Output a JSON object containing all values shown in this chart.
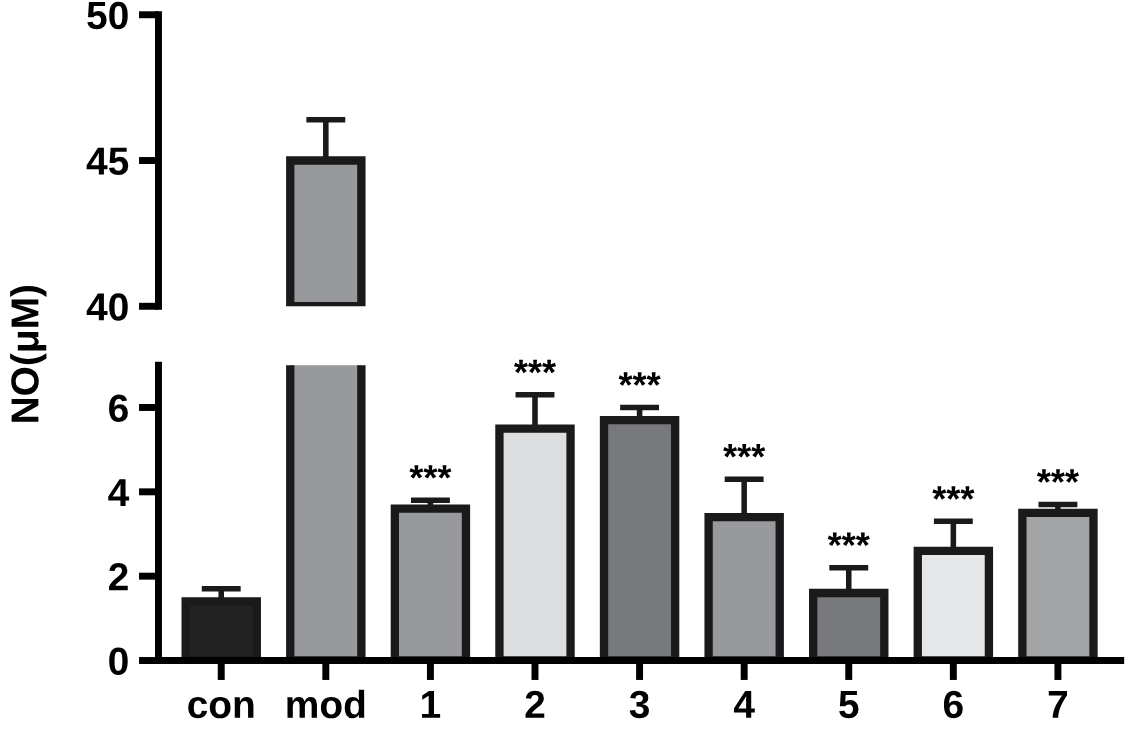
{
  "chart_data": [
    {
      "type": "bar",
      "categories": [
        null,
        null,
        null,
        null,
        null,
        null,
        null,
        null,
        null
      ],
      "values": [
        null,
        45,
        null,
        null,
        null,
        null,
        null,
        null,
        null
      ],
      "colors": [
        "#222222",
        "#97999c",
        "#97999c",
        "#dcdddf",
        "#78797c",
        "#97999c",
        "#78797c",
        "#e6e7e8",
        "#a3a4a6"
      ],
      "errors": [
        null,
        [
          45,
          46.4
        ],
        null,
        null,
        null,
        null,
        null,
        null,
        null
      ],
      "ylim": [
        40,
        50
      ],
      "yticks": [
        40,
        45,
        50
      ],
      "tick_labels": "y"
    },
    {
      "type": "bar",
      "categories": [
        "con",
        "mod",
        "1",
        "2",
        "3",
        "4",
        "5",
        "6",
        "7"
      ],
      "values": [
        1.4,
        null,
        3.6,
        5.5,
        5.7,
        3.4,
        1.6,
        2.6,
        3.5
      ],
      "colors": [
        "#222222",
        "#97999c",
        "#97999c",
        "#dcdddf",
        "#78797c",
        "#97999c",
        "#78797c",
        "#e6e7e8",
        "#a3a4a6"
      ],
      "errors": [
        [
          1.4,
          1.7
        ],
        null,
        [
          3.6,
          3.8
        ],
        [
          5.5,
          6.3
        ],
        [
          5.7,
          6.0
        ],
        [
          3.4,
          4.3
        ],
        [
          1.6,
          2.2
        ],
        [
          2.6,
          3.3
        ],
        [
          3.5,
          3.7
        ]
      ],
      "ylim": [
        0,
        7
      ],
      "yticks": [
        0,
        2,
        4,
        6
      ],
      "ylabel": "NO(μM)",
      "annotations": [
        {
          "text": "***",
          "x": "1",
          "y": 3.8
        },
        {
          "text": "***",
          "x": "2",
          "y": 6.3
        },
        {
          "text": "***",
          "x": "3",
          "y": 6.0
        },
        {
          "text": "***",
          "x": "4",
          "y": 4.3
        },
        {
          "text": "***",
          "x": "5",
          "y": 2.2
        },
        {
          "text": "***",
          "x": "6",
          "y": 3.3
        },
        {
          "text": "***",
          "x": "7",
          "y": 3.7
        }
      ]
    }
  ]
}
